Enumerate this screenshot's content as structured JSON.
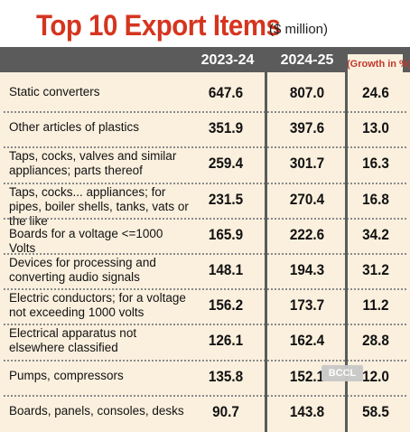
{
  "title": "Top 10 Export Items",
  "unit": "($ million)",
  "columns": [
    "2023-24",
    "2024-25",
    "(Growth in %)"
  ],
  "watermark": "BCCL",
  "colors": {
    "title": "#d5351f",
    "header_band": "#5b5b5b",
    "background": "#fbf0de",
    "growth_header": "#c0392b"
  },
  "chart_data": {
    "type": "table",
    "title": "Top 10 Export Items",
    "unit": "($ million)",
    "columns": [
      "2023-24",
      "2024-25",
      "(Growth in %)"
    ],
    "rows": [
      {
        "item": "Static converters",
        "y2023_24": "647.6",
        "y2024_25": "807.0",
        "growth": "24.6"
      },
      {
        "item": "Other articles of plastics",
        "y2023_24": "351.9",
        "y2024_25": "397.6",
        "growth": "13.0"
      },
      {
        "item": "Taps, cocks, valves and similar appliances; parts thereof",
        "y2023_24": "259.4",
        "y2024_25": "301.7",
        "growth": "16.3"
      },
      {
        "item": "Taps, cocks... appliances; for pipes, boiler shells, tanks, vats or the like",
        "y2023_24": "231.5",
        "y2024_25": "270.4",
        "growth": "16.8"
      },
      {
        "item": "Boards for a voltage <=1000 Volts",
        "y2023_24": "165.9",
        "y2024_25": "222.6",
        "growth": "34.2"
      },
      {
        "item": "Devices for processing and converting audio signals",
        "y2023_24": "148.1",
        "y2024_25": "194.3",
        "growth": "31.2"
      },
      {
        "item": "Electric conductors; for a voltage not exceeding 1000 volts",
        "y2023_24": "156.2",
        "y2024_25": "173.7",
        "growth": "11.2"
      },
      {
        "item": "Electrical apparatus not elsewhere classified",
        "y2023_24": "126.1",
        "y2024_25": "162.4",
        "growth": "28.8"
      },
      {
        "item": "Pumps, compressors",
        "y2023_24": "135.8",
        "y2024_25": "152.1",
        "growth": "12.0"
      },
      {
        "item": "Boards, panels, consoles, desks",
        "y2023_24": "90.7",
        "y2024_25": "143.8",
        "growth": "58.5"
      }
    ]
  }
}
